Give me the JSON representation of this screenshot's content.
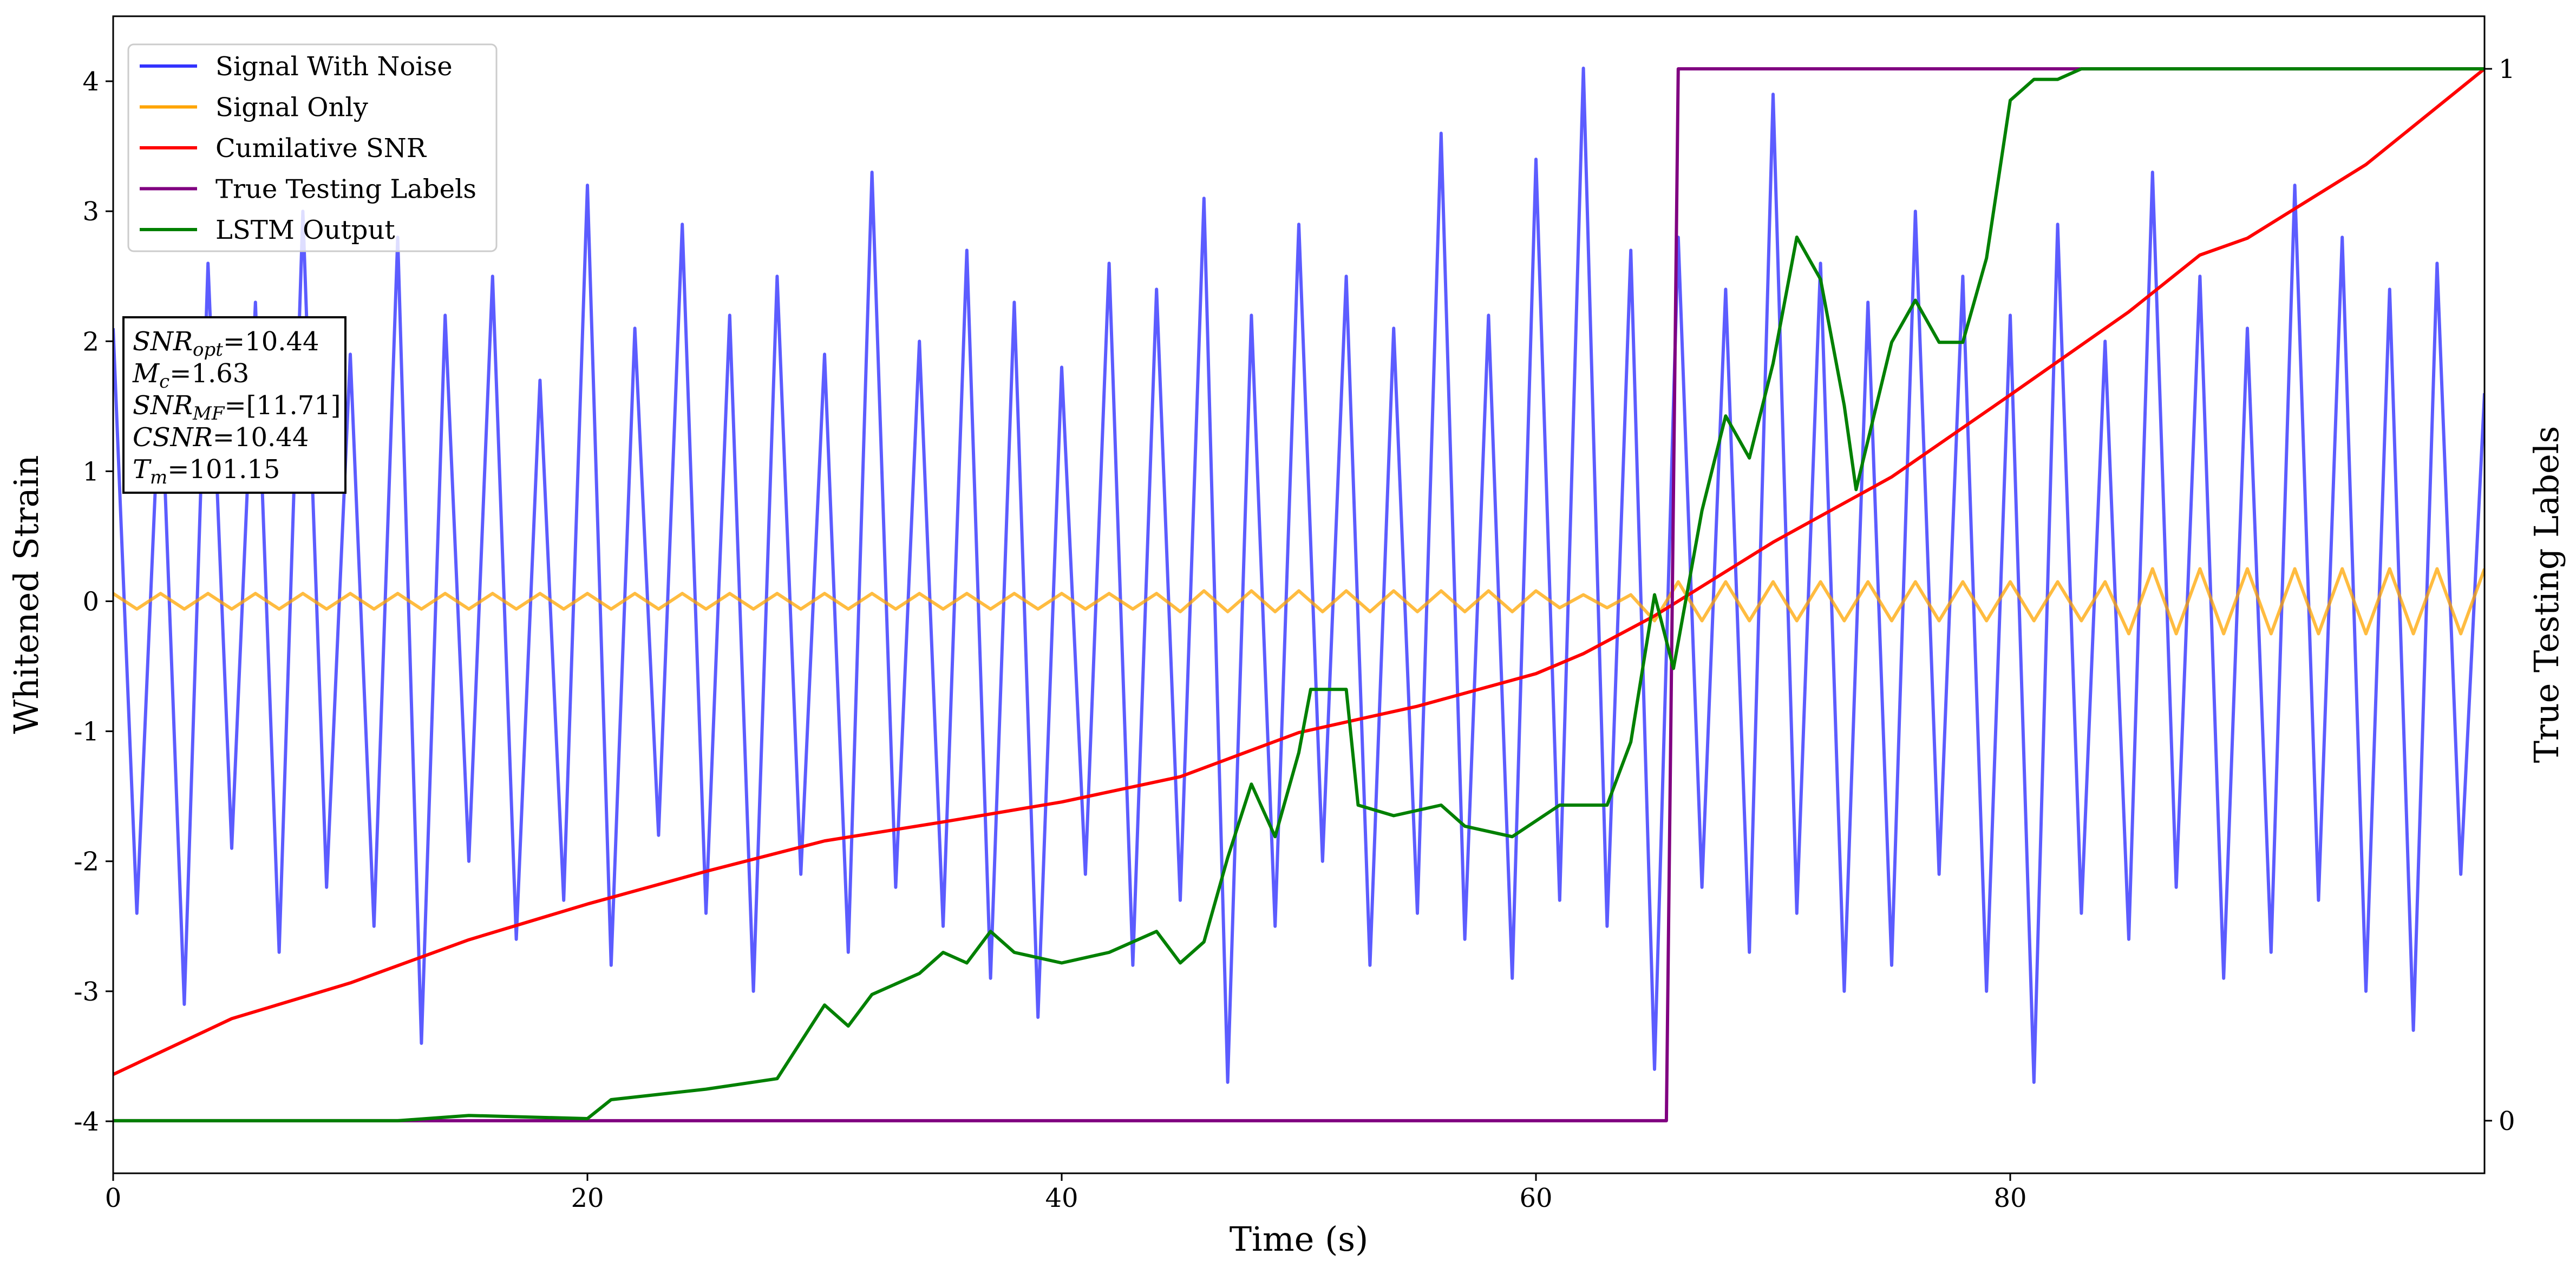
{
  "chart_data": {
    "type": "line",
    "xlabel": "Time (s)",
    "ylabel": "Whitened Strain",
    "y2label": "True Testing Labels",
    "xlim": [
      0,
      100
    ],
    "ylim": [
      -4.4,
      4.5
    ],
    "y2lim": [
      -0.05,
      1.05
    ],
    "xticks": [
      0,
      20,
      40,
      60,
      80
    ],
    "yticks": [
      -4,
      -3,
      -2,
      -1,
      0,
      1,
      2,
      3,
      4
    ],
    "y2ticks": [
      0,
      1
    ],
    "legend": "upper left",
    "x": [
      0,
      1,
      2,
      3,
      4,
      5,
      6,
      7,
      8,
      9,
      10,
      11,
      12,
      13,
      14,
      15,
      16,
      17,
      18,
      19,
      20,
      21,
      22,
      23,
      24,
      25,
      26,
      27,
      28,
      29,
      30,
      31,
      32,
      33,
      34,
      35,
      36,
      37,
      38,
      39,
      40,
      41,
      42,
      43,
      44,
      45,
      46,
      47,
      48,
      49,
      50,
      51,
      52,
      53,
      54,
      55,
      56,
      57,
      58,
      59,
      60,
      61,
      62,
      63,
      64,
      65,
      66,
      67,
      68,
      69,
      70,
      71,
      72,
      73,
      74,
      75,
      76,
      77,
      78,
      79,
      80,
      81,
      82,
      83,
      84,
      85,
      86,
      87,
      88,
      89,
      90,
      91,
      92,
      93,
      94,
      95,
      96,
      97,
      98,
      99,
      100
    ],
    "series": [
      {
        "name": "Signal With Noise",
        "color": "#3333ff",
        "axis": "y",
        "values": [
          2.1,
          -2.4,
          1.8,
          -3.1,
          2.6,
          -1.9,
          2.3,
          -2.7,
          3.0,
          -2.2,
          1.9,
          -2.5,
          2.8,
          -3.4,
          2.2,
          -2.0,
          2.5,
          -2.6,
          1.7,
          -2.3,
          3.2,
          -2.8,
          2.1,
          -1.8,
          2.9,
          -2.4,
          2.2,
          -3.0,
          2.5,
          -2.1,
          1.9,
          -2.7,
          3.3,
          -2.2,
          2.0,
          -2.5,
          2.7,
          -2.9,
          2.3,
          -3.2,
          1.8,
          -2.1,
          2.6,
          -2.8,
          2.4,
          -2.3,
          3.1,
          -3.7,
          2.2,
          -2.5,
          2.9,
          -2.0,
          2.5,
          -2.8,
          2.1,
          -2.4,
          3.6,
          -2.6,
          2.2,
          -2.9,
          3.4,
          -2.3,
          4.1,
          -2.5,
          2.7,
          -3.6,
          2.8,
          -2.2,
          2.4,
          -2.7,
          3.9,
          -2.4,
          2.6,
          -3.0,
          2.3,
          -2.8,
          3.0,
          -2.1,
          2.5,
          -3.0,
          2.2,
          -3.7,
          2.9,
          -2.4,
          2.0,
          -2.6,
          3.3,
          -2.2,
          2.5,
          -2.9,
          2.1,
          -2.7,
          3.2,
          -2.3,
          2.8,
          -3.0,
          2.4,
          -3.3,
          2.6,
          -2.1,
          1.6
        ]
      },
      {
        "name": "Signal Only",
        "color": "#ffa500",
        "axis": "y",
        "values": [
          0.06,
          -0.06,
          0.06,
          -0.06,
          0.06,
          -0.06,
          0.06,
          -0.06,
          0.06,
          -0.06,
          0.06,
          -0.06,
          0.06,
          -0.06,
          0.06,
          -0.06,
          0.06,
          -0.06,
          0.06,
          -0.06,
          0.06,
          -0.06,
          0.06,
          -0.06,
          0.06,
          -0.06,
          0.06,
          -0.06,
          0.06,
          -0.06,
          0.06,
          -0.06,
          0.06,
          -0.06,
          0.06,
          -0.06,
          0.06,
          -0.06,
          0.06,
          -0.06,
          0.06,
          -0.06,
          0.06,
          -0.06,
          0.06,
          -0.08,
          0.08,
          -0.08,
          0.08,
          -0.08,
          0.08,
          -0.08,
          0.08,
          -0.08,
          0.08,
          -0.08,
          0.08,
          -0.08,
          0.08,
          -0.08,
          0.08,
          -0.05,
          0.05,
          -0.05,
          0.05,
          -0.15,
          0.15,
          -0.15,
          0.15,
          -0.15,
          0.15,
          -0.15,
          0.15,
          -0.15,
          0.15,
          -0.15,
          0.15,
          -0.15,
          0.15,
          -0.15,
          0.15,
          -0.15,
          0.15,
          -0.15,
          0.15,
          -0.25,
          0.25,
          -0.25,
          0.25,
          -0.25,
          0.25,
          -0.25,
          0.25,
          -0.25,
          0.25,
          -0.25,
          0.25,
          -0.25,
          0.25,
          -0.25,
          0.25
        ]
      },
      {
        "name": "Cumilative SNR",
        "color": "#ff0000",
        "axis": "y2",
        "x": [
          0,
          5,
          10,
          15,
          20,
          25,
          30,
          35,
          40,
          45,
          50,
          55,
          60,
          62,
          65,
          70,
          75,
          80,
          85,
          88,
          90,
          95,
          100
        ],
        "values": [
          0.044,
          0.097,
          0.131,
          0.172,
          0.206,
          0.237,
          0.266,
          0.284,
          0.303,
          0.327,
          0.369,
          0.394,
          0.425,
          0.444,
          0.48,
          0.55,
          0.612,
          0.69,
          0.769,
          0.823,
          0.839,
          0.909,
          1.0
        ]
      },
      {
        "name": "True Testing Labels",
        "color": "#800080",
        "axis": "y2",
        "x": [
          0,
          65.5,
          66,
          100
        ],
        "values": [
          0,
          0,
          1,
          1
        ]
      },
      {
        "name": "LSTM Output",
        "color": "#008000",
        "axis": "y2",
        "x": [
          0,
          12,
          15,
          20,
          21,
          25,
          28,
          30,
          31,
          32,
          34,
          35,
          36,
          37,
          38,
          40,
          42,
          44,
          45,
          46,
          47,
          48,
          49,
          50,
          50.5,
          52,
          52.5,
          54,
          56,
          57,
          59,
          61,
          63,
          64,
          65,
          65.8,
          67,
          68,
          69,
          70,
          71,
          72,
          73,
          73.5,
          75,
          76,
          77,
          78,
          79,
          80,
          81,
          82,
          83,
          100
        ],
        "values": [
          0,
          0,
          0.005,
          0.002,
          0.02,
          0.03,
          0.04,
          0.11,
          0.09,
          0.12,
          0.14,
          0.16,
          0.15,
          0.18,
          0.16,
          0.15,
          0.16,
          0.18,
          0.15,
          0.17,
          0.25,
          0.32,
          0.27,
          0.35,
          0.41,
          0.41,
          0.3,
          0.29,
          0.3,
          0.28,
          0.27,
          0.3,
          0.3,
          0.36,
          0.5,
          0.43,
          0.58,
          0.67,
          0.63,
          0.72,
          0.84,
          0.8,
          0.68,
          0.6,
          0.74,
          0.78,
          0.74,
          0.74,
          0.82,
          0.97,
          0.99,
          0.99,
          1.0,
          1.0
        ]
      }
    ],
    "annotation": [
      {
        "main": "SNR",
        "sub": "opt",
        "rest": "=10.44"
      },
      {
        "main": "M",
        "sub": "c",
        "rest": "=1.63"
      },
      {
        "main": "SNR",
        "sub": "MF",
        "rest": "=[11.71]"
      },
      {
        "main": "CSNR",
        "rest": "=10.44"
      },
      {
        "main": "T",
        "sub": "m",
        "rest": "=101.15"
      }
    ]
  }
}
